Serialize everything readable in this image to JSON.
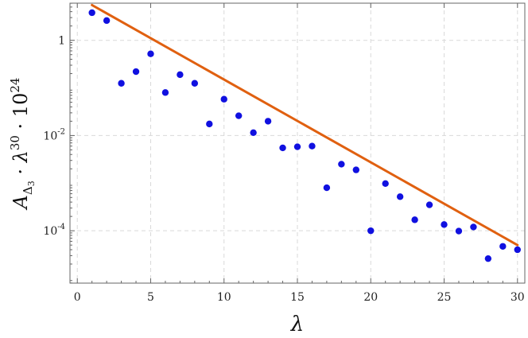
{
  "chart_data": {
    "type": "scatter",
    "title": "",
    "xlabel": "λ",
    "ylabel": {
      "base": "A",
      "sub1": "Δ",
      "sub2": "3",
      "mid": " · λ",
      "exp1": "30",
      "tail": " · 10",
      "exp2": "24"
    },
    "xlim": [
      -0.5,
      30.5
    ],
    "ylim_log10": [
      -5.1,
      0.78
    ],
    "log_y": true,
    "grid": true,
    "x_ticks": [
      {
        "value": 0,
        "label": "0"
      },
      {
        "value": 5,
        "label": "5"
      },
      {
        "value": 10,
        "label": "10"
      },
      {
        "value": 15,
        "label": "15"
      },
      {
        "value": 20,
        "label": "20"
      },
      {
        "value": 25,
        "label": "25"
      },
      {
        "value": 30,
        "label": "30"
      }
    ],
    "y_ticks": [
      {
        "log10": 0,
        "base": "1",
        "exp": ""
      },
      {
        "log10": -2,
        "base": "10",
        "exp": "-2"
      },
      {
        "log10": -4,
        "base": "10",
        "exp": "-4"
      }
    ],
    "series": [
      {
        "kind": "points",
        "color": "#1010e0",
        "x": [
          1,
          2,
          3,
          4,
          5,
          6,
          7,
          8,
          9,
          10,
          11,
          12,
          13,
          14,
          15,
          16,
          17,
          18,
          19,
          20,
          21,
          22,
          23,
          24,
          25,
          26,
          27,
          28,
          29,
          30
        ],
        "y": [
          3.8,
          2.6,
          0.125,
          0.22,
          0.52,
          0.08,
          0.19,
          0.125,
          0.0175,
          0.058,
          0.026,
          0.0115,
          0.02,
          0.0055,
          0.0058,
          0.006,
          0.0008,
          0.0025,
          0.0019,
          0.0001,
          0.00098,
          0.00052,
          0.00017,
          0.00035,
          0.000135,
          9.85e-05,
          0.00012,
          2.6e-05,
          4.7e-05,
          4e-05
        ]
      },
      {
        "kind": "line",
        "color": "#e06010",
        "x": [
          1,
          30
        ],
        "y": [
          5.5,
          5e-05
        ]
      }
    ]
  }
}
